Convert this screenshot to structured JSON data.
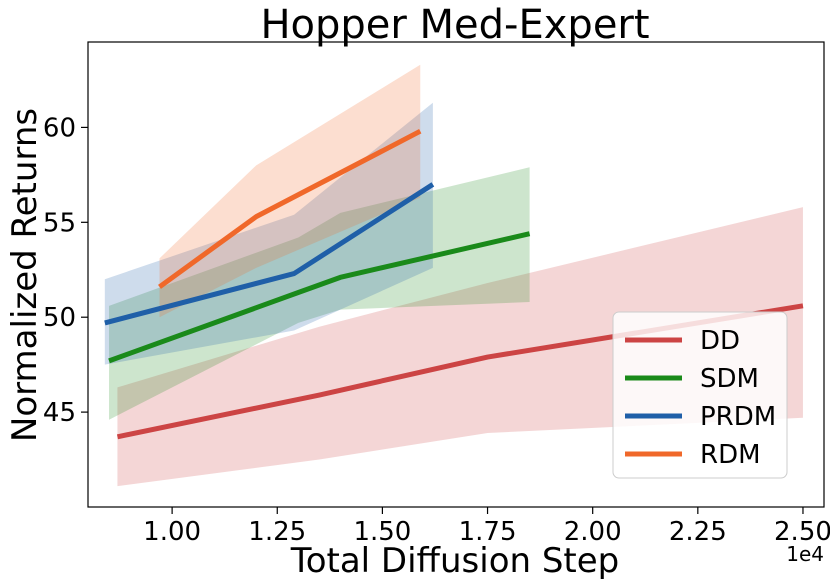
{
  "chart_data": {
    "type": "line",
    "title": "Hopper Med-Expert",
    "xlabel": "Total Diffusion Step",
    "ylabel": "Normalized Returns",
    "x_offset_label": "1e4",
    "xlim": [
      0.8,
      2.55
    ],
    "ylim": [
      40,
      64.5
    ],
    "xticks": [
      1.0,
      1.25,
      1.5,
      1.75,
      2.0,
      2.25,
      2.5
    ],
    "xtick_labels": [
      "1.00",
      "1.25",
      "1.50",
      "1.75",
      "2.00",
      "2.25",
      "2.50"
    ],
    "yticks": [
      45,
      50,
      55,
      60
    ],
    "ytick_labels": [
      "45",
      "50",
      "55",
      "60"
    ],
    "grid": false,
    "legend_position": "lower-right",
    "series": [
      {
        "name": "DD",
        "color": "#cc4444",
        "x": [
          0.87,
          1.35,
          1.75,
          2.5
        ],
        "y": [
          43.7,
          45.9,
          47.9,
          50.6
        ],
        "lower": [
          41.1,
          42.5,
          43.9,
          44.7
        ],
        "upper": [
          46.3,
          49.5,
          51.8,
          55.8
        ]
      },
      {
        "name": "SDM",
        "color": "#1a8a1a",
        "x": [
          0.85,
          1.3,
          1.4,
          1.85
        ],
        "y": [
          47.7,
          51.3,
          52.1,
          54.4
        ],
        "lower": [
          44.6,
          49.7,
          50.4,
          50.8
        ],
        "upper": [
          50.6,
          54.2,
          55.5,
          57.9
        ]
      },
      {
        "name": "PRDM",
        "color": "#1f5fa8",
        "x": [
          0.84,
          1.29,
          1.62
        ],
        "y": [
          49.7,
          52.3,
          57.0
        ],
        "lower": [
          47.5,
          49.3,
          52.6
        ],
        "upper": [
          52.0,
          55.4,
          61.3
        ]
      },
      {
        "name": "RDM",
        "color": "#f0682a",
        "x": [
          0.97,
          1.2,
          1.59
        ],
        "y": [
          51.6,
          55.3,
          59.8
        ],
        "lower": [
          50.0,
          52.6,
          56.3
        ],
        "upper": [
          53.1,
          58.0,
          63.3
        ]
      }
    ]
  }
}
